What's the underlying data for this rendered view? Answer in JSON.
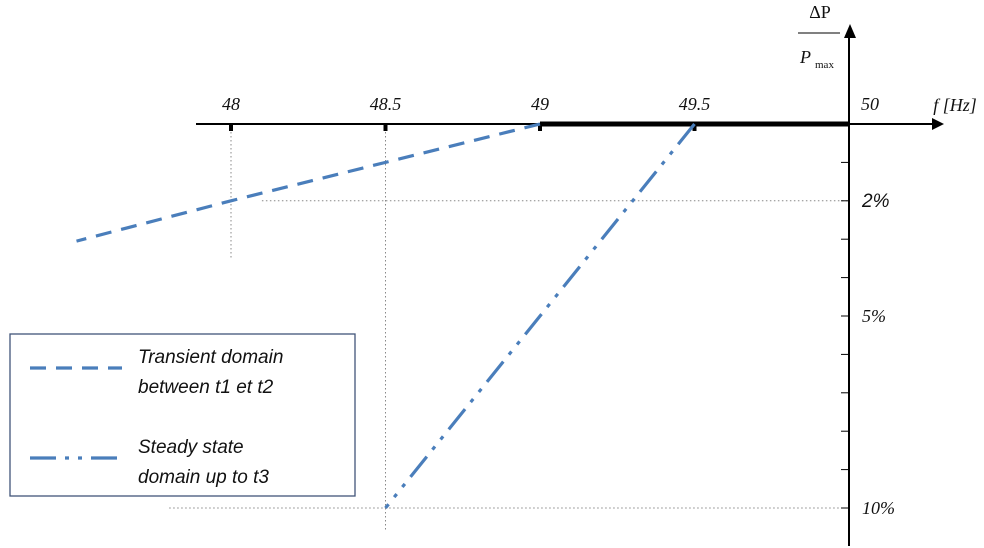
{
  "chart_data": {
    "type": "line",
    "x_axis": {
      "label": "f [Hz]",
      "ticks": [
        48,
        48.5,
        49,
        49.5,
        50
      ],
      "tick_labels": [
        "48",
        "48.5",
        "49",
        "49.5",
        "50"
      ],
      "range": [
        47.4,
        50.3
      ]
    },
    "y_axis": {
      "label_numerator": "ΔP",
      "label_denominator": "P",
      "label_denominator_sub": "max",
      "tick_labels": [
        {
          "value": 2,
          "text": "2%"
        },
        {
          "value": 5,
          "text": "5%"
        },
        {
          "value": 10,
          "text": "10%"
        }
      ],
      "minor_ticks": [
        1,
        2,
        3,
        4,
        5,
        6,
        7,
        8,
        9,
        10
      ],
      "range": [
        0,
        10.7
      ]
    },
    "series": [
      {
        "name": "Transient domain between t1 et t2",
        "style": "dashed",
        "color": "#4a7ebb",
        "points": [
          [
            49,
            0
          ],
          [
            48,
            2
          ],
          [
            47.5,
            3.05
          ]
        ]
      },
      {
        "name": "Steady state domain up to t3",
        "style": "dash-dot-dot",
        "color": "#4a7ebb",
        "points": [
          [
            49.5,
            0
          ],
          [
            48.5,
            10
          ]
        ]
      }
    ],
    "highlight_segment": {
      "x": [
        49,
        50
      ],
      "y": 0
    },
    "guides": [
      {
        "type": "vertical",
        "x": 48,
        "y_to": 3.5
      },
      {
        "type": "vertical",
        "x": 48.5,
        "y_to": 10.6
      },
      {
        "type": "horizontal",
        "y": 2,
        "x_from": 48.1
      },
      {
        "type": "horizontal",
        "y": 10,
        "x_from": 47.8
      }
    ],
    "legend": {
      "placement": "bottom-left",
      "entries": [
        {
          "line1": "Transient domain",
          "line2": "between  t1 et t2",
          "style": "dashed"
        },
        {
          "line1": "Steady state",
          "line2": "domain up to t3",
          "style": "dash-dot-dot"
        }
      ]
    },
    "grid": false
  }
}
